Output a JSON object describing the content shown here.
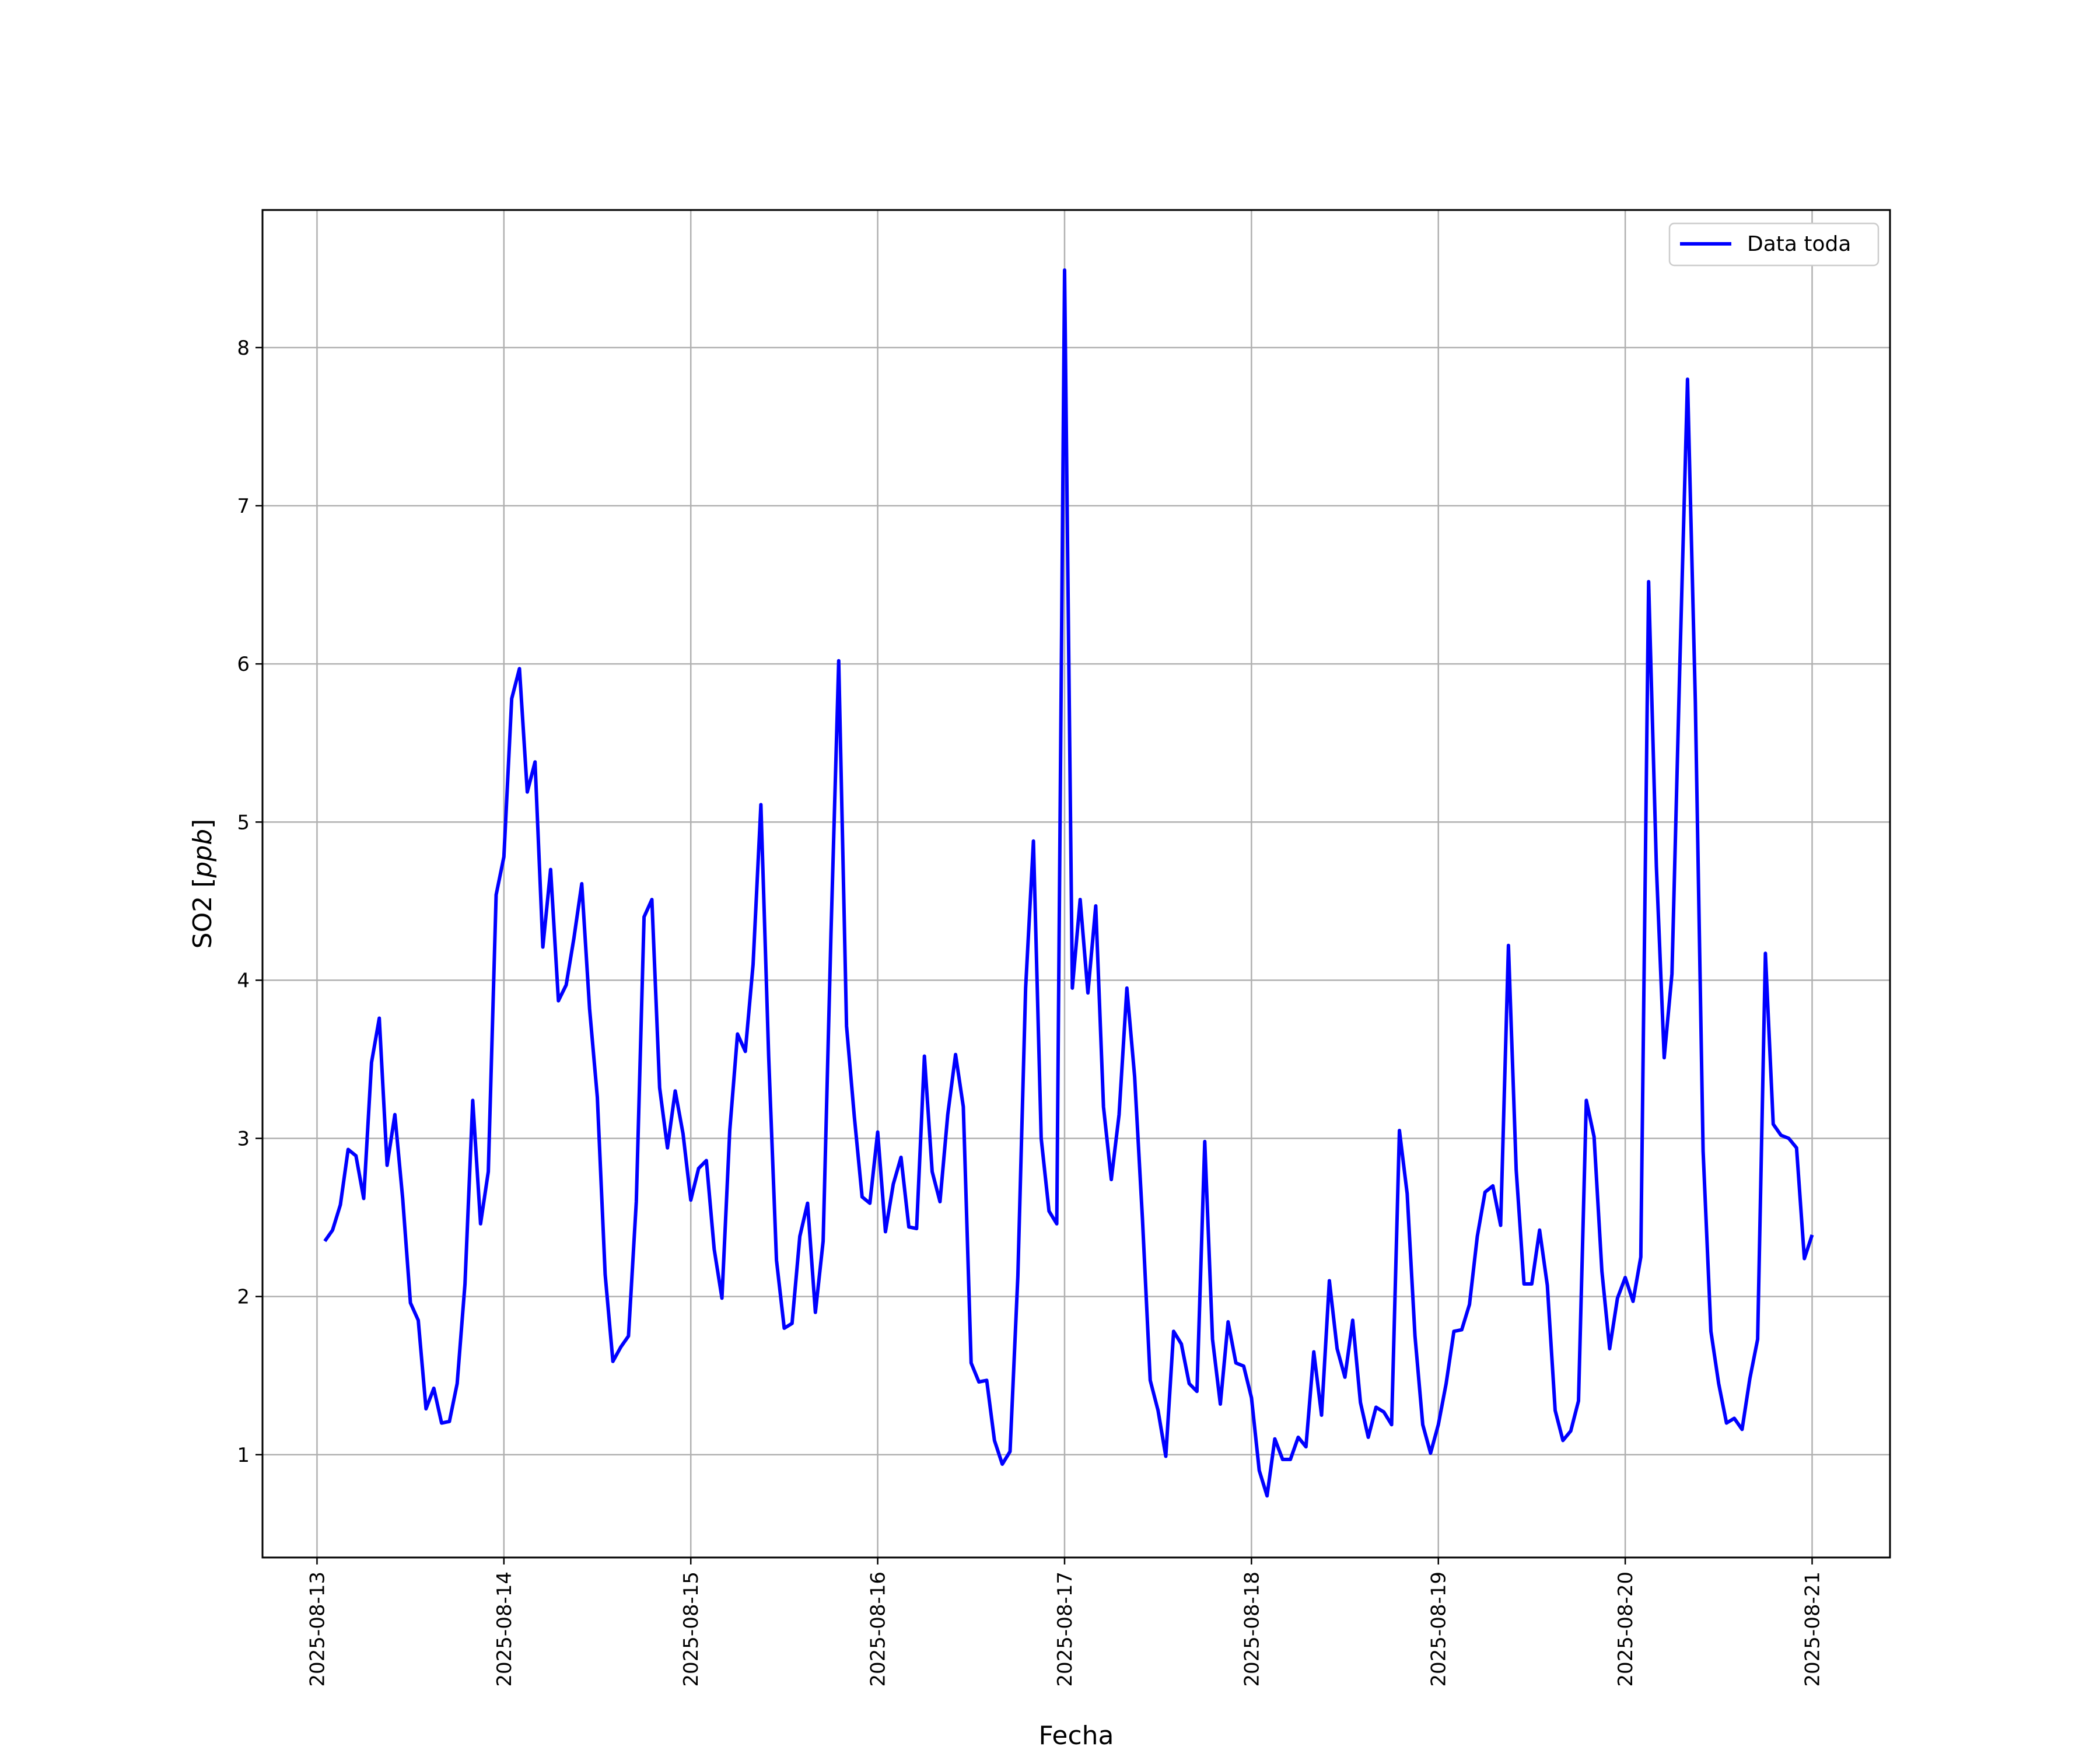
{
  "chart_data": {
    "type": "line",
    "xlabel": "Fecha",
    "ylabel": "SO2",
    "ylabel_unit": "ppb",
    "xlim": [
      "2025-08-12T17:00",
      "2025-08-21T10:00"
    ],
    "ylim": [
      0.35,
      8.87
    ],
    "grid": true,
    "legend_position": "top-right",
    "line_color": "#0000ff",
    "x_ticks": [
      "2025-08-13",
      "2025-08-14",
      "2025-08-15",
      "2025-08-16",
      "2025-08-17",
      "2025-08-18",
      "2025-08-19",
      "2025-08-20",
      "2025-08-21"
    ],
    "y_ticks": [
      1,
      2,
      3,
      4,
      5,
      6,
      7,
      8
    ],
    "series": [
      {
        "name": "Data toda",
        "x": [
          "2025-08-13T01:00",
          "2025-08-13T02:00",
          "2025-08-13T03:00",
          "2025-08-13T04:00",
          "2025-08-13T05:00",
          "2025-08-13T06:00",
          "2025-08-13T07:00",
          "2025-08-13T08:00",
          "2025-08-13T09:00",
          "2025-08-13T10:00",
          "2025-08-13T11:00",
          "2025-08-13T12:00",
          "2025-08-13T13:00",
          "2025-08-13T14:00",
          "2025-08-13T15:00",
          "2025-08-13T16:00",
          "2025-08-13T17:00",
          "2025-08-13T18:00",
          "2025-08-13T19:00",
          "2025-08-13T20:00",
          "2025-08-13T21:00",
          "2025-08-13T22:00",
          "2025-08-13T23:00",
          "2025-08-14T00:00",
          "2025-08-14T01:00",
          "2025-08-14T02:00",
          "2025-08-14T03:00",
          "2025-08-14T04:00",
          "2025-08-14T05:00",
          "2025-08-14T06:00",
          "2025-08-14T07:00",
          "2025-08-14T08:00",
          "2025-08-14T09:00",
          "2025-08-14T10:00",
          "2025-08-14T11:00",
          "2025-08-14T12:00",
          "2025-08-14T13:00",
          "2025-08-14T14:00",
          "2025-08-14T15:00",
          "2025-08-14T16:00",
          "2025-08-14T17:00",
          "2025-08-14T18:00",
          "2025-08-14T19:00",
          "2025-08-14T20:00",
          "2025-08-14T21:00",
          "2025-08-14T22:00",
          "2025-08-14T23:00",
          "2025-08-15T00:00",
          "2025-08-15T01:00",
          "2025-08-15T02:00",
          "2025-08-15T03:00",
          "2025-08-15T04:00",
          "2025-08-15T05:00",
          "2025-08-15T06:00",
          "2025-08-15T07:00",
          "2025-08-15T08:00",
          "2025-08-15T09:00",
          "2025-08-15T10:00",
          "2025-08-15T11:00",
          "2025-08-15T12:00",
          "2025-08-15T13:00",
          "2025-08-15T14:00",
          "2025-08-15T15:00",
          "2025-08-15T16:00",
          "2025-08-15T17:00",
          "2025-08-15T18:00",
          "2025-08-15T19:00",
          "2025-08-15T20:00",
          "2025-08-15T21:00",
          "2025-08-15T22:00",
          "2025-08-15T23:00",
          "2025-08-16T00:00",
          "2025-08-16T01:00",
          "2025-08-16T02:00",
          "2025-08-16T03:00",
          "2025-08-16T04:00",
          "2025-08-16T05:00",
          "2025-08-16T06:00",
          "2025-08-16T07:00",
          "2025-08-16T08:00",
          "2025-08-16T09:00",
          "2025-08-16T10:00",
          "2025-08-16T11:00",
          "2025-08-16T12:00",
          "2025-08-16T13:00",
          "2025-08-16T14:00",
          "2025-08-16T15:00",
          "2025-08-16T16:00",
          "2025-08-16T17:00",
          "2025-08-16T18:00",
          "2025-08-16T19:00",
          "2025-08-16T20:00",
          "2025-08-16T21:00",
          "2025-08-16T22:00",
          "2025-08-16T23:00",
          "2025-08-17T00:00",
          "2025-08-17T01:00",
          "2025-08-17T02:00",
          "2025-08-17T03:00",
          "2025-08-17T04:00",
          "2025-08-17T05:00",
          "2025-08-17T06:00",
          "2025-08-17T07:00",
          "2025-08-17T08:00",
          "2025-08-17T09:00",
          "2025-08-17T10:00",
          "2025-08-17T11:00",
          "2025-08-17T12:00",
          "2025-08-17T13:00",
          "2025-08-17T14:00",
          "2025-08-17T15:00",
          "2025-08-17T16:00",
          "2025-08-17T17:00",
          "2025-08-17T18:00",
          "2025-08-17T19:00",
          "2025-08-17T20:00",
          "2025-08-17T21:00",
          "2025-08-17T22:00",
          "2025-08-17T23:00",
          "2025-08-18T00:00",
          "2025-08-18T01:00",
          "2025-08-18T02:00",
          "2025-08-18T03:00",
          "2025-08-18T04:00",
          "2025-08-18T05:00",
          "2025-08-18T06:00",
          "2025-08-18T07:00",
          "2025-08-18T08:00",
          "2025-08-18T09:00",
          "2025-08-18T10:00",
          "2025-08-18T11:00",
          "2025-08-18T12:00",
          "2025-08-18T13:00",
          "2025-08-18T14:00",
          "2025-08-18T15:00",
          "2025-08-18T16:00",
          "2025-08-18T17:00",
          "2025-08-18T18:00",
          "2025-08-18T19:00",
          "2025-08-18T20:00",
          "2025-08-18T21:00",
          "2025-08-18T22:00",
          "2025-08-18T23:00",
          "2025-08-19T00:00",
          "2025-08-19T01:00",
          "2025-08-19T02:00",
          "2025-08-19T03:00",
          "2025-08-19T04:00",
          "2025-08-19T05:00",
          "2025-08-19T06:00",
          "2025-08-19T07:00",
          "2025-08-19T08:00",
          "2025-08-19T09:00",
          "2025-08-19T10:00",
          "2025-08-19T11:00",
          "2025-08-19T12:00",
          "2025-08-19T13:00",
          "2025-08-19T14:00",
          "2025-08-19T15:00",
          "2025-08-19T16:00",
          "2025-08-19T17:00",
          "2025-08-19T18:00",
          "2025-08-19T19:00",
          "2025-08-19T20:00",
          "2025-08-19T21:00",
          "2025-08-19T22:00",
          "2025-08-19T23:00",
          "2025-08-20T00:00",
          "2025-08-20T01:00",
          "2025-08-20T02:00",
          "2025-08-20T03:00",
          "2025-08-20T04:00",
          "2025-08-20T05:00",
          "2025-08-20T06:00",
          "2025-08-20T07:00",
          "2025-08-20T08:00",
          "2025-08-20T09:00",
          "2025-08-20T10:00",
          "2025-08-20T11:00",
          "2025-08-20T12:00",
          "2025-08-20T13:00",
          "2025-08-20T14:00",
          "2025-08-20T15:00",
          "2025-08-20T16:00",
          "2025-08-20T17:00",
          "2025-08-20T18:00",
          "2025-08-20T19:00",
          "2025-08-20T20:00",
          "2025-08-20T21:00",
          "2025-08-20T22:00",
          "2025-08-20T23:00",
          "2025-08-21T00:00"
        ],
        "y": [
          2.35,
          2.42,
          2.58,
          2.93,
          2.89,
          2.62,
          3.48,
          3.76,
          2.83,
          3.15,
          2.62,
          1.96,
          1.85,
          1.29,
          1.42,
          1.2,
          1.21,
          1.45,
          2.08,
          3.24,
          2.46,
          2.79,
          4.54,
          4.78,
          5.78,
          5.97,
          5.19,
          5.38,
          4.21,
          4.7,
          3.87,
          3.97,
          4.27,
          4.61,
          3.82,
          3.26,
          2.14,
          1.59,
          1.68,
          1.75,
          2.6,
          4.4,
          4.51,
          3.32,
          2.94,
          3.3,
          3.03,
          2.61,
          2.81,
          2.86,
          2.3,
          1.99,
          3.05,
          3.66,
          3.55,
          4.1,
          5.11,
          3.52,
          2.23,
          1.8,
          1.83,
          2.38,
          2.59,
          1.9,
          2.35,
          4.29,
          6.02,
          3.71,
          3.14,
          2.63,
          2.59,
          3.04,
          2.41,
          2.71,
          2.88,
          2.44,
          2.43,
          3.52,
          2.79,
          2.6,
          3.15,
          3.53,
          3.2,
          1.58,
          1.46,
          1.47,
          1.09,
          0.94,
          1.02,
          2.13,
          3.95,
          4.88,
          3.0,
          2.54,
          2.46,
          8.49,
          3.95,
          4.51,
          3.92,
          4.47,
          3.2,
          2.74,
          3.15,
          3.95,
          3.39,
          2.49,
          1.47,
          1.28,
          0.99,
          1.78,
          1.7,
          1.45,
          1.4,
          2.98,
          1.73,
          1.32,
          1.84,
          1.58,
          1.56,
          1.36,
          0.9,
          0.74,
          1.1,
          0.97,
          0.97,
          1.11,
          1.05,
          1.65,
          1.25,
          2.1,
          1.67,
          1.49,
          1.85,
          1.33,
          1.11,
          1.3,
          1.27,
          1.19,
          3.05,
          2.65,
          1.75,
          1.19,
          1.01,
          1.19,
          1.45,
          1.78,
          1.79,
          1.95,
          2.38,
          2.66,
          2.7,
          2.45,
          4.22,
          2.8,
          2.08,
          2.08,
          2.42,
          2.07,
          1.28,
          1.09,
          1.15,
          1.34,
          3.24,
          3.01,
          2.16,
          1.67,
          1.99,
          2.12,
          1.97,
          2.25,
          6.52,
          4.72,
          3.51,
          4.04,
          5.98,
          7.8,
          5.76,
          2.92,
          1.78,
          1.45,
          1.2,
          1.23,
          1.16,
          1.48,
          1.73,
          4.17,
          3.09,
          3.02,
          3.0,
          2.94,
          2.24,
          2.39
        ]
      }
    ]
  }
}
